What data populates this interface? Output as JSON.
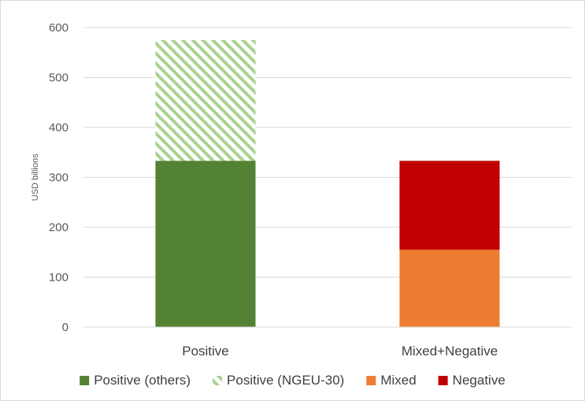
{
  "chart_data": {
    "type": "bar",
    "stacked": true,
    "title": "",
    "xlabel": "",
    "ylabel": "USD billions",
    "ylim": [
      0,
      600
    ],
    "yticks": [
      0,
      100,
      200,
      300,
      400,
      500,
      600
    ],
    "grid": true,
    "legend_position": "bottom",
    "categories": [
      "Positive",
      "Mixed+Negative"
    ],
    "series": [
      {
        "name": "Positive (others)",
        "values": [
          333,
          0
        ],
        "color": "#548235",
        "pattern": "solid"
      },
      {
        "name": "Positive (NGEU-30)",
        "values": [
          242,
          0
        ],
        "color": "#a9d18e",
        "pattern": "hatched"
      },
      {
        "name": "Mixed",
        "values": [
          0,
          155
        ],
        "color": "#ed7d31",
        "pattern": "solid"
      },
      {
        "name": "Negative",
        "values": [
          0,
          178
        ],
        "color": "#c00000",
        "pattern": "solid"
      }
    ]
  }
}
